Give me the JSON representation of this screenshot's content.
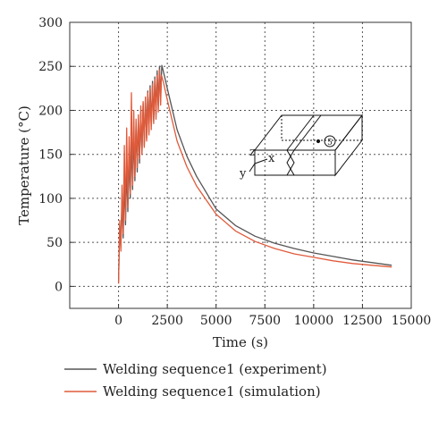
{
  "chart_data": {
    "type": "line",
    "xlabel": "Time (s)",
    "ylabel": "Temperature (°C)",
    "xlim": [
      -2500,
      15000
    ],
    "ylim": [
      -25,
      300
    ],
    "x_ticks": [
      0,
      2500,
      5000,
      7500,
      10000,
      12500,
      15000
    ],
    "y_ticks": [
      0,
      50,
      100,
      150,
      200,
      250,
      300
    ],
    "x_tick_labels": [
      "0",
      "2500",
      "5000",
      "7500",
      "10000",
      "12500",
      "15000"
    ],
    "y_tick_labels": [
      "0",
      "50",
      "100",
      "150",
      "200",
      "250",
      "300"
    ],
    "grid": true,
    "legend_position": "below",
    "series": [
      {
        "name": "Welding sequence1 (experiment)",
        "color": "#555555",
        "x": [
          0,
          60,
          120,
          180,
          240,
          300,
          360,
          420,
          480,
          540,
          600,
          660,
          720,
          780,
          840,
          900,
          960,
          1020,
          1080,
          1140,
          1200,
          1260,
          1320,
          1380,
          1440,
          1500,
          1560,
          1620,
          1680,
          1740,
          1800,
          1860,
          1920,
          1980,
          2040,
          2100,
          2160,
          2220,
          2300,
          2500,
          3000,
          3500,
          4000,
          5000,
          6000,
          7000,
          8000,
          9000,
          10000,
          11000,
          12000,
          13000,
          14000
        ],
        "y": [
          5,
          70,
          45,
          100,
          55,
          120,
          70,
          135,
          85,
          150,
          100,
          165,
          110,
          175,
          120,
          185,
          130,
          190,
          140,
          200,
          150,
          208,
          160,
          215,
          168,
          222,
          175,
          228,
          182,
          233,
          188,
          238,
          195,
          245,
          205,
          250,
          215,
          251,
          244,
          225,
          178,
          148,
          125,
          88,
          69,
          57,
          49,
          43,
          38,
          34,
          30,
          27,
          24
        ]
      },
      {
        "name": "Welding sequence1 (simulation)",
        "color": "#e05a3a",
        "x": [
          0,
          60,
          120,
          180,
          240,
          300,
          360,
          420,
          480,
          540,
          600,
          660,
          720,
          780,
          840,
          900,
          960,
          1020,
          1080,
          1140,
          1200,
          1260,
          1320,
          1380,
          1440,
          1500,
          1560,
          1620,
          1680,
          1740,
          1800,
          1860,
          1920,
          1980,
          2040,
          2100,
          2160,
          2200,
          2300,
          2500,
          3000,
          3500,
          4000,
          5000,
          6000,
          7000,
          8000,
          9000,
          10000,
          11000,
          12000,
          13000,
          14000
        ],
        "y": [
          3,
          75,
          40,
          115,
          60,
          160,
          75,
          180,
          90,
          170,
          105,
          220,
          115,
          200,
          125,
          190,
          135,
          195,
          145,
          205,
          150,
          210,
          158,
          215,
          165,
          220,
          172,
          225,
          178,
          230,
          185,
          235,
          190,
          240,
          198,
          246,
          206,
          240,
          232,
          212,
          165,
          136,
          114,
          82,
          63,
          51,
          43,
          37,
          33,
          29,
          26,
          24,
          22
        ]
      }
    ],
    "inset": {
      "axis_labels": [
        "z",
        "x",
        "y"
      ],
      "marker": "5"
    }
  }
}
